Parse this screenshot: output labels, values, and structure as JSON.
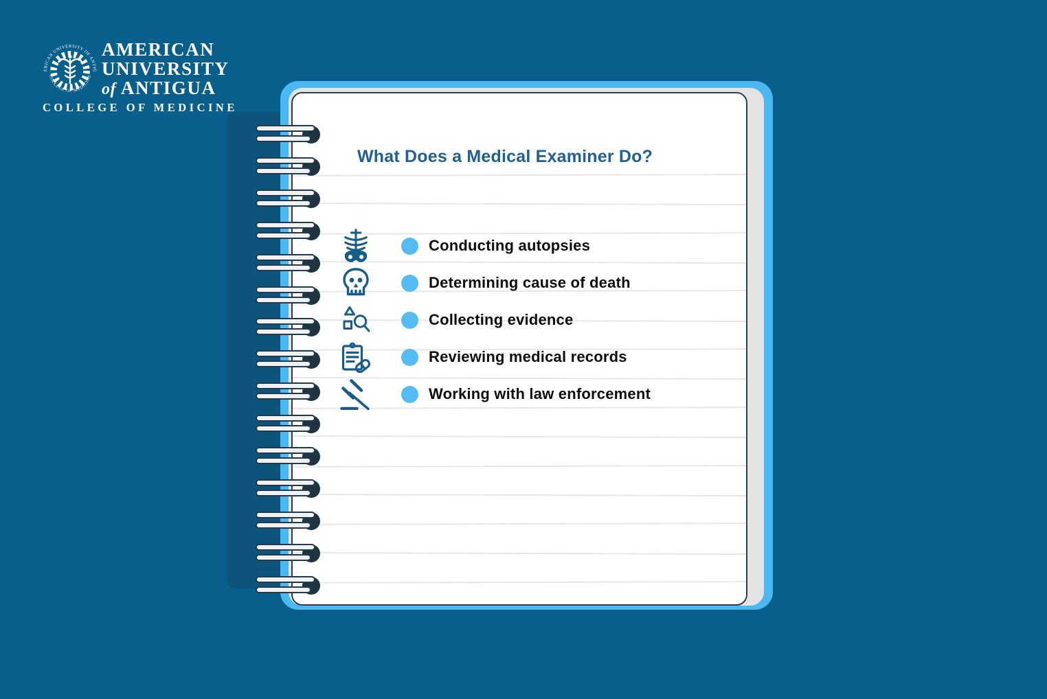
{
  "logo": {
    "line1": "AMERICAN",
    "line2": "UNIVERSITY",
    "line3_of": "of",
    "line3_rest": "ANTIGUA",
    "subtitle": "COLLEGE OF MEDICINE",
    "seal_top_text": "AMERICAN UNIVERSITY OF ANTIGUA",
    "seal_bottom_text": "COLLEGE OF MEDICINE"
  },
  "notebook": {
    "title": "What Does a Medical Examiner Do?",
    "items": [
      {
        "icon": "ribcage-icon",
        "label": "Conducting autopsies"
      },
      {
        "icon": "skull-icon",
        "label": "Determining cause of death"
      },
      {
        "icon": "evidence-search-icon",
        "label": "Collecting evidence"
      },
      {
        "icon": "medical-records-icon",
        "label": "Reviewing medical records"
      },
      {
        "icon": "gavel-icon",
        "label": "Working with law enforcement"
      }
    ]
  },
  "colors": {
    "background": "#095f8c",
    "cover_light_blue": "#4cb8f2",
    "bullet_blue": "#55bbf3",
    "icon_teal": "#175d88",
    "title_blue": "#206190",
    "ring_dark": "#1f3441",
    "page_stack_gray": "#e3e3e3",
    "logo_white": "#ffffff"
  }
}
